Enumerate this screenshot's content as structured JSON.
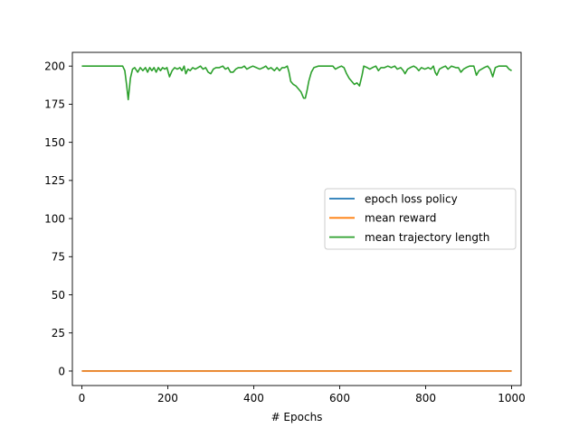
{
  "chart_data": {
    "type": "line",
    "title": "",
    "xlabel": "# Epochs",
    "ylabel": "",
    "xlim": [
      -22,
      1022
    ],
    "ylim": [
      -9.5,
      209
    ],
    "xticks": [
      0,
      200,
      400,
      600,
      800,
      1000
    ],
    "yticks": [
      0,
      25,
      50,
      75,
      100,
      125,
      150,
      175,
      200
    ],
    "grid": false,
    "legend": "center-right",
    "series": [
      {
        "name": "epoch loss policy",
        "color": "#1f77b4",
        "points": [
          [
            0,
            0.1
          ],
          [
            1000,
            0.1
          ]
        ]
      },
      {
        "name": "mean reward",
        "color": "#ff7f0e",
        "points": [
          [
            0,
            0.0
          ],
          [
            1000,
            0.0
          ]
        ]
      },
      {
        "name": "mean trajectory length",
        "color": "#2ca02c",
        "points": [
          [
            0,
            200
          ],
          [
            60,
            200
          ],
          [
            95,
            200
          ],
          [
            100,
            197
          ],
          [
            104,
            188
          ],
          [
            108,
            178
          ],
          [
            113,
            192
          ],
          [
            118,
            198
          ],
          [
            123,
            199
          ],
          [
            130,
            196
          ],
          [
            136,
            199
          ],
          [
            142,
            197
          ],
          [
            148,
            199
          ],
          [
            153,
            196
          ],
          [
            158,
            199
          ],
          [
            163,
            197
          ],
          [
            168,
            199
          ],
          [
            173,
            196
          ],
          [
            178,
            199
          ],
          [
            183,
            197
          ],
          [
            188,
            199
          ],
          [
            193,
            198
          ],
          [
            198,
            199
          ],
          [
            204,
            193
          ],
          [
            210,
            197
          ],
          [
            216,
            199
          ],
          [
            222,
            198
          ],
          [
            228,
            199
          ],
          [
            233,
            197
          ],
          [
            238,
            200
          ],
          [
            242,
            195
          ],
          [
            247,
            198
          ],
          [
            252,
            197
          ],
          [
            258,
            199
          ],
          [
            264,
            198
          ],
          [
            270,
            199
          ],
          [
            276,
            200
          ],
          [
            282,
            198
          ],
          [
            288,
            199
          ],
          [
            294,
            196
          ],
          [
            300,
            195
          ],
          [
            306,
            198
          ],
          [
            312,
            199
          ],
          [
            320,
            199
          ],
          [
            328,
            200
          ],
          [
            334,
            198
          ],
          [
            340,
            199
          ],
          [
            346,
            196
          ],
          [
            352,
            196
          ],
          [
            358,
            198
          ],
          [
            364,
            199
          ],
          [
            372,
            199
          ],
          [
            378,
            200
          ],
          [
            384,
            198
          ],
          [
            390,
            199
          ],
          [
            398,
            200
          ],
          [
            406,
            199
          ],
          [
            414,
            198
          ],
          [
            422,
            199
          ],
          [
            428,
            200
          ],
          [
            434,
            198
          ],
          [
            440,
            199
          ],
          [
            448,
            197
          ],
          [
            454,
            199
          ],
          [
            460,
            197
          ],
          [
            466,
            199
          ],
          [
            472,
            199
          ],
          [
            478,
            200
          ],
          [
            482,
            196
          ],
          [
            486,
            190
          ],
          [
            492,
            188
          ],
          [
            498,
            187
          ],
          [
            504,
            185
          ],
          [
            510,
            183
          ],
          [
            516,
            179
          ],
          [
            520,
            179
          ],
          [
            524,
            184
          ],
          [
            528,
            190
          ],
          [
            534,
            196
          ],
          [
            540,
            199
          ],
          [
            550,
            200
          ],
          [
            570,
            200
          ],
          [
            584,
            200
          ],
          [
            590,
            198
          ],
          [
            596,
            199
          ],
          [
            604,
            200
          ],
          [
            610,
            199
          ],
          [
            616,
            195
          ],
          [
            622,
            192
          ],
          [
            628,
            190
          ],
          [
            634,
            188
          ],
          [
            640,
            189
          ],
          [
            646,
            187
          ],
          [
            652,
            194
          ],
          [
            656,
            200
          ],
          [
            664,
            199
          ],
          [
            670,
            198
          ],
          [
            676,
            199
          ],
          [
            684,
            200
          ],
          [
            690,
            197
          ],
          [
            696,
            199
          ],
          [
            704,
            199
          ],
          [
            712,
            200
          ],
          [
            720,
            199
          ],
          [
            728,
            200
          ],
          [
            734,
            198
          ],
          [
            742,
            199
          ],
          [
            748,
            197
          ],
          [
            752,
            195
          ],
          [
            758,
            198
          ],
          [
            764,
            199
          ],
          [
            772,
            200
          ],
          [
            778,
            199
          ],
          [
            784,
            197
          ],
          [
            790,
            199
          ],
          [
            798,
            198
          ],
          [
            806,
            199
          ],
          [
            812,
            198
          ],
          [
            818,
            200
          ],
          [
            822,
            196
          ],
          [
            826,
            194
          ],
          [
            832,
            198
          ],
          [
            838,
            199
          ],
          [
            846,
            200
          ],
          [
            852,
            198
          ],
          [
            860,
            200
          ],
          [
            870,
            199
          ],
          [
            876,
            199
          ],
          [
            882,
            196
          ],
          [
            888,
            198
          ],
          [
            894,
            199
          ],
          [
            902,
            200
          ],
          [
            912,
            200
          ],
          [
            918,
            194
          ],
          [
            924,
            197
          ],
          [
            930,
            198
          ],
          [
            936,
            199
          ],
          [
            944,
            200
          ],
          [
            950,
            198
          ],
          [
            956,
            193
          ],
          [
            962,
            199
          ],
          [
            970,
            200
          ],
          [
            980,
            200
          ],
          [
            988,
            200
          ],
          [
            994,
            198
          ],
          [
            1000,
            197
          ]
        ]
      }
    ]
  }
}
